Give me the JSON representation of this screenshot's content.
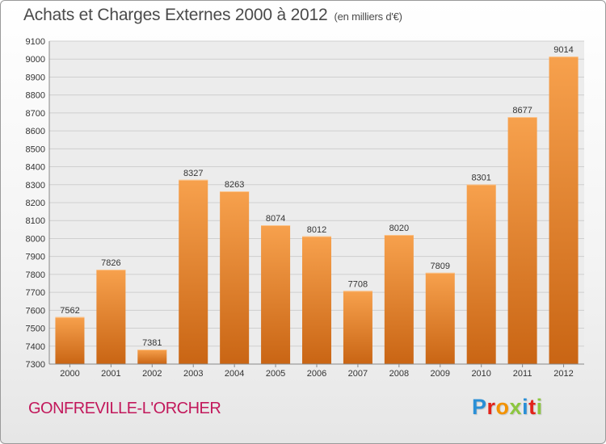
{
  "header": {
    "title": "Achats et Charges Externes 2000 à 2012",
    "unit": "(en milliers d'€)"
  },
  "footer": {
    "place": "GONFREVILLE-L'ORCHER",
    "logo_text": "Proxiti",
    "logo_colors": [
      "#2a8fd6",
      "#e2231a",
      "#f39200",
      "#8cc63f",
      "#2a8fd6",
      "#e2231a",
      "#8cc63f"
    ]
  },
  "colors": {
    "bar_top": "#f7a14d",
    "bar_bottom": "#c96514",
    "place_text": "#c2185b"
  },
  "chart_data": {
    "type": "bar",
    "categories": [
      "2000",
      "2001",
      "2002",
      "2003",
      "2004",
      "2005",
      "2006",
      "2007",
      "2008",
      "2009",
      "2010",
      "2011",
      "2012"
    ],
    "values": [
      7562,
      7826,
      7381,
      8327,
      8263,
      8074,
      8012,
      7708,
      8020,
      7809,
      8301,
      8677,
      9014
    ],
    "ylim": [
      7300,
      9100
    ],
    "ytick_step": 100,
    "grid": true,
    "data_labels": true
  }
}
